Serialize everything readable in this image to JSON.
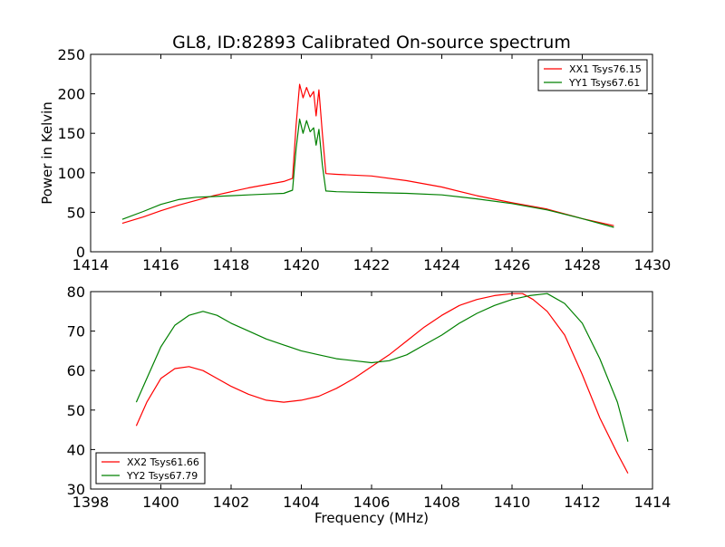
{
  "chart_data": [
    {
      "type": "line",
      "title": "GL8, ID:82893 Calibrated On-source spectrum",
      "xlabel": "",
      "ylabel": "Power in Kelvin",
      "xlim": [
        1414,
        1430
      ],
      "ylim": [
        0,
        250
      ],
      "xticks": [
        1414,
        1416,
        1418,
        1420,
        1422,
        1424,
        1426,
        1428,
        1430
      ],
      "yticks": [
        0,
        50,
        100,
        150,
        200,
        250
      ],
      "legend_position": "top-right",
      "series": [
        {
          "name": "XX1 Tsys76.15",
          "color": "#ff0000",
          "x": [
            1414.9,
            1415.5,
            1416.0,
            1416.5,
            1417.0,
            1417.5,
            1418.0,
            1418.5,
            1419.0,
            1419.5,
            1419.75,
            1419.85,
            1419.95,
            1420.05,
            1420.15,
            1420.25,
            1420.35,
            1420.42,
            1420.5,
            1420.6,
            1420.7,
            1421.0,
            1422.0,
            1423.0,
            1424.0,
            1425.0,
            1426.0,
            1427.0,
            1428.0,
            1428.9
          ],
          "y": [
            36,
            44,
            52,
            59,
            65,
            71,
            76,
            81,
            85,
            89,
            93,
            160,
            212,
            195,
            208,
            196,
            203,
            172,
            205,
            150,
            99,
            98,
            96,
            90,
            82,
            71,
            62,
            54,
            42,
            33
          ]
        },
        {
          "name": "YY1 Tsys67.61",
          "color": "#008000",
          "x": [
            1414.9,
            1415.5,
            1416.0,
            1416.5,
            1417.0,
            1417.5,
            1418.0,
            1418.5,
            1419.0,
            1419.5,
            1419.75,
            1419.85,
            1419.95,
            1420.05,
            1420.15,
            1420.25,
            1420.35,
            1420.42,
            1420.5,
            1420.6,
            1420.7,
            1421.0,
            1422.0,
            1423.0,
            1424.0,
            1425.0,
            1426.0,
            1427.0,
            1428.0,
            1428.9
          ],
          "y": [
            41,
            51,
            60,
            66,
            69,
            70,
            71,
            72,
            73,
            74,
            78,
            130,
            168,
            150,
            166,
            152,
            157,
            135,
            155,
            110,
            77,
            76,
            75,
            74,
            72,
            67,
            61,
            53,
            42,
            31
          ]
        }
      ]
    },
    {
      "type": "line",
      "title": "",
      "xlabel": "Frequency (MHz)",
      "ylabel": "",
      "xlim": [
        1398,
        1414
      ],
      "ylim": [
        30,
        80
      ],
      "xticks": [
        1398,
        1400,
        1402,
        1404,
        1406,
        1408,
        1410,
        1412,
        1414
      ],
      "yticks": [
        30,
        40,
        50,
        60,
        70,
        80
      ],
      "legend_position": "bottom-left",
      "series": [
        {
          "name": "XX2 Tsys61.66",
          "color": "#ff0000",
          "x": [
            1399.3,
            1399.6,
            1400.0,
            1400.4,
            1400.8,
            1401.2,
            1401.6,
            1402.0,
            1402.5,
            1403.0,
            1403.5,
            1404.0,
            1404.5,
            1405.0,
            1405.5,
            1406.0,
            1406.5,
            1407.0,
            1407.5,
            1408.0,
            1408.5,
            1409.0,
            1409.5,
            1410.0,
            1410.3,
            1410.6,
            1411.0,
            1411.5,
            1412.0,
            1412.5,
            1413.0,
            1413.3
          ],
          "y": [
            46,
            52,
            58,
            60.5,
            61,
            60,
            58,
            56,
            54,
            52.5,
            52,
            52.5,
            53.5,
            55.5,
            58,
            61,
            64,
            67.5,
            71,
            74,
            76.5,
            78,
            79,
            79.5,
            79.5,
            78,
            75,
            69,
            59,
            48,
            39,
            34
          ]
        },
        {
          "name": "YY2 Tsys67.79",
          "color": "#008000",
          "x": [
            1399.3,
            1399.6,
            1400.0,
            1400.4,
            1400.8,
            1401.2,
            1401.6,
            1402.0,
            1402.5,
            1403.0,
            1403.5,
            1404.0,
            1404.5,
            1405.0,
            1405.5,
            1406.0,
            1406.5,
            1407.0,
            1407.5,
            1408.0,
            1408.5,
            1409.0,
            1409.5,
            1410.0,
            1410.5,
            1411.0,
            1411.5,
            1412.0,
            1412.5,
            1413.0,
            1413.3
          ],
          "y": [
            52,
            58,
            66,
            71.5,
            74,
            75,
            74,
            72,
            70,
            68,
            66.5,
            65,
            64,
            63,
            62.5,
            62,
            62.5,
            64,
            66.5,
            69,
            72,
            74.5,
            76.5,
            78,
            79,
            79.5,
            77,
            72,
            63,
            52,
            42
          ]
        }
      ]
    }
  ]
}
